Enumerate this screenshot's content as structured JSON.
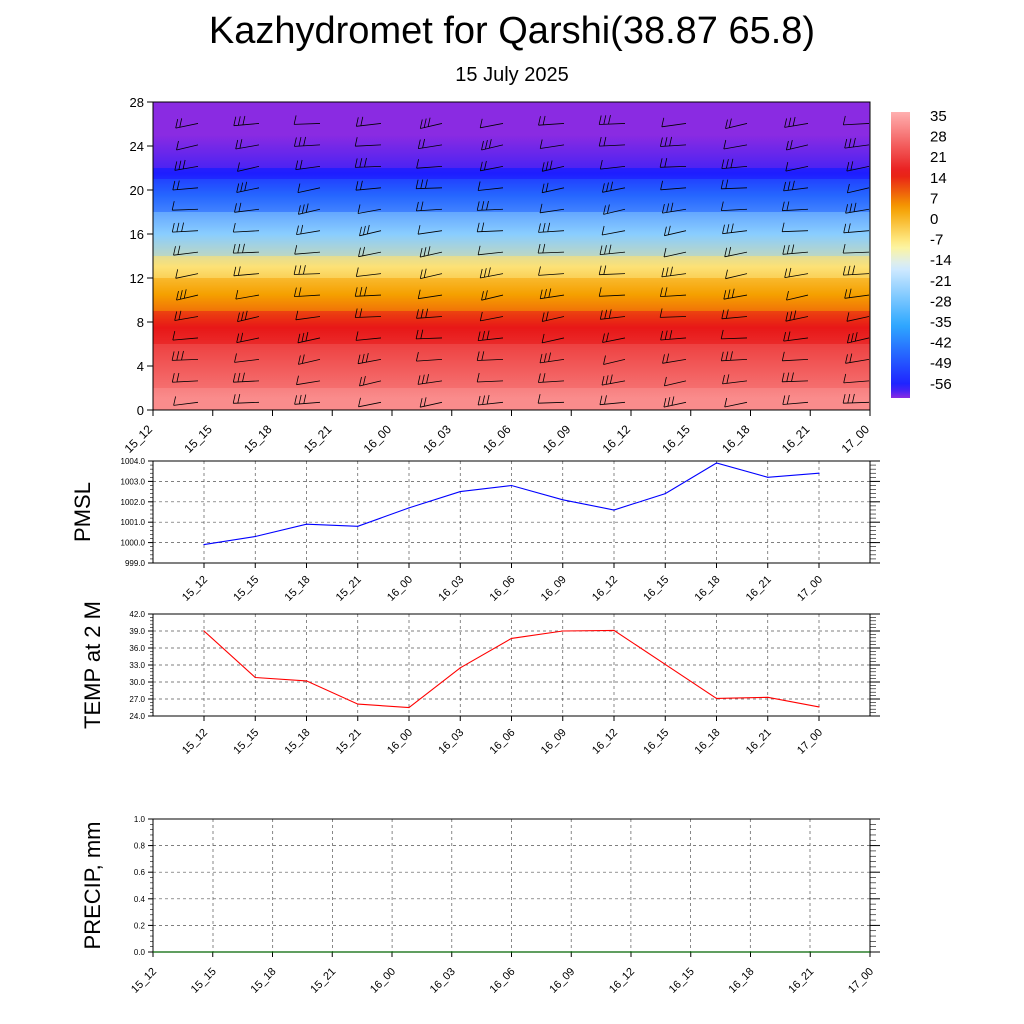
{
  "header": {
    "title": "Kazhydromet for Qarshi(38.87 65.8)",
    "subtitle": "15 July 2025"
  },
  "chart_data": [
    {
      "type": "heatmap",
      "title": "",
      "x_tick_labels": [
        "15_12",
        "15_15",
        "15_18",
        "15_21",
        "16_00",
        "16_03",
        "16_06",
        "16_09",
        "16_12",
        "16_15",
        "16_18",
        "16_21",
        "17_00"
      ],
      "y_tick_labels": [
        "0",
        "4",
        "8",
        "12",
        "16",
        "20",
        "24",
        "28"
      ],
      "ylim": [
        0,
        28
      ],
      "colorbar_labels": [
        "35",
        "28",
        "21",
        "14",
        "7",
        "0",
        "-7",
        "-14",
        "-21",
        "-28",
        "-35",
        "-42",
        "-49",
        "-56"
      ],
      "colorbar_range": [
        -60,
        38
      ],
      "color_stops": {
        "min": "#8a2be2",
        "cold": "#1e1eff",
        "cool": "#2ea8ff",
        "pale": "#d6ecff",
        "yellow": "#fff59a",
        "orange": "#f5a000",
        "red": "#e81818",
        "max": "#ffb0b0"
      },
      "description_layers": [
        {
          "from": 0,
          "to": 2,
          "value": 33
        },
        {
          "from": 2,
          "to": 6,
          "value": 26
        },
        {
          "from": 6,
          "to": 9,
          "value": 17
        },
        {
          "from": 9,
          "to": 12,
          "value": 5
        },
        {
          "from": 12,
          "to": 14,
          "value": -5
        },
        {
          "from": 14,
          "to": 18,
          "value": -24
        },
        {
          "from": 18,
          "to": 21,
          "value": -45
        },
        {
          "from": 21,
          "to": 22,
          "value": -56
        },
        {
          "from": 22,
          "to": 28,
          "value": -60
        }
      ],
      "wind_barbs": true
    },
    {
      "type": "line",
      "ylabel": "PMSL",
      "x": [
        "15_12",
        "15_15",
        "15_18",
        "15_21",
        "16_00",
        "16_03",
        "16_06",
        "16_09",
        "16_12",
        "16_15",
        "16_18",
        "16_21",
        "17_00"
      ],
      "series": [
        {
          "values": [
            999.9,
            1000.3,
            1000.9,
            1000.8,
            1001.7,
            1002.5,
            1002.8,
            1002.1,
            1001.6,
            1002.4,
            1003.9,
            1003.2,
            1003.4
          ]
        }
      ],
      "ylim": [
        999.0,
        1004.0
      ],
      "y_tick_labels": [
        "999.0",
        "1000.0",
        "1001.0",
        "1002.0",
        "1003.0",
        "1004.0"
      ],
      "color": "#0000ff",
      "grid": true
    },
    {
      "type": "line",
      "ylabel": "TEMP at 2 M",
      "x": [
        "15_12",
        "15_15",
        "15_18",
        "15_21",
        "16_00",
        "16_03",
        "16_06",
        "16_09",
        "16_12",
        "16_15",
        "16_18",
        "16_21",
        "17_00"
      ],
      "series": [
        {
          "values": [
            39.0,
            30.8,
            30.2,
            26.1,
            25.5,
            32.5,
            37.7,
            39.0,
            39.1,
            33.1,
            27.1,
            27.3,
            25.6
          ]
        }
      ],
      "ylim": [
        24.0,
        42.0
      ],
      "y_tick_labels": [
        "24.0",
        "27.0",
        "30.0",
        "33.0",
        "36.0",
        "39.0",
        "42.0"
      ],
      "color": "#ff0000",
      "grid": true
    },
    {
      "type": "line",
      "ylabel": "PRECIP, mm",
      "x": [
        "15_12",
        "15_15",
        "15_18",
        "15_21",
        "16_00",
        "16_03",
        "16_06",
        "16_09",
        "16_12",
        "16_15",
        "16_18",
        "16_21",
        "17_00"
      ],
      "series": [
        {
          "values": [
            0,
            0,
            0,
            0,
            0,
            0,
            0,
            0,
            0,
            0,
            0,
            0,
            0
          ]
        }
      ],
      "ylim": [
        0.0,
        1.0
      ],
      "y_tick_labels": [
        "0.0",
        "0.2",
        "0.4",
        "0.6",
        "0.8",
        "1.0"
      ],
      "color": "#006400",
      "grid": true
    }
  ]
}
